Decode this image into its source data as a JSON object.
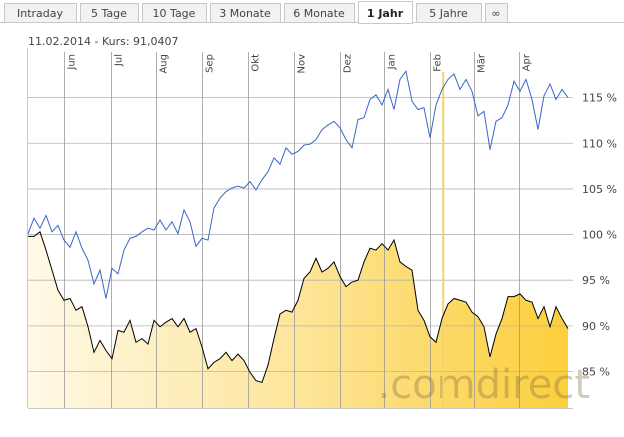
{
  "tabs": [
    "Intraday",
    "5 Tage",
    "10 Tage",
    "3 Monate",
    "6 Monate",
    "1 Jahr",
    "5 Jahre",
    "∞"
  ],
  "active_tab": 5,
  "chart_data": {
    "type": "line",
    "title": "11.02.2014  -  Kurs: 91,0407",
    "watermark": ".comdirect",
    "x": [
      0,
      1,
      2,
      3,
      4,
      5,
      6,
      7,
      8,
      9,
      10,
      11,
      12,
      13,
      14,
      15,
      16,
      17,
      18,
      19,
      20,
      21,
      22,
      23,
      24,
      25,
      26,
      27,
      28,
      29,
      30,
      31,
      32,
      33,
      34,
      35,
      36,
      37,
      38,
      39,
      40,
      41,
      42,
      43,
      44,
      45,
      46,
      47,
      48,
      49,
      50,
      51,
      52,
      53,
      54,
      55,
      56,
      57,
      58,
      59,
      60,
      61,
      62,
      63,
      64,
      65,
      66,
      67,
      68,
      69,
      70,
      71,
      72,
      73,
      74,
      75,
      76,
      77,
      78,
      79,
      80,
      81,
      82,
      83,
      84,
      85,
      86,
      87,
      88,
      89,
      90
    ],
    "xlim": [
      0,
      90
    ],
    "xticks": [
      {
        "value": 6,
        "label": "Jun"
      },
      {
        "value": 13.83,
        "label": "Jul"
      },
      {
        "value": 21.33,
        "label": "Aug"
      },
      {
        "value": 29,
        "label": "Sep"
      },
      {
        "value": 36.67,
        "label": "Okt"
      },
      {
        "value": 44.33,
        "label": "Nov"
      },
      {
        "value": 52,
        "label": "Dez"
      },
      {
        "value": 59.33,
        "label": "Jan"
      },
      {
        "value": 67,
        "label": "Feb"
      },
      {
        "value": 74.33,
        "label": "Mär"
      },
      {
        "value": 81.83,
        "label": "Apr"
      }
    ],
    "ylim": [
      81,
      120
    ],
    "yticks": [
      {
        "value": 85,
        "label": "85 %"
      },
      {
        "value": 90,
        "label": "90 %"
      },
      {
        "value": 95,
        "label": "95 %"
      },
      {
        "value": 100,
        "label": "100 %"
      },
      {
        "value": 105,
        "label": "105 %"
      },
      {
        "value": 110,
        "label": "110 %"
      },
      {
        "value": 115,
        "label": "115 %"
      }
    ],
    "grid": true,
    "crosshair_x": 69.2,
    "series": [
      {
        "color": "#3a66c8",
        "fill": false,
        "values": [
          100.1,
          101.8,
          100.7,
          102.1,
          100.3,
          101.0,
          99.4,
          98.6,
          100.3,
          98.5,
          97.2,
          94.6,
          96.1,
          93.0,
          96.3,
          95.7,
          98.3,
          99.6,
          99.8,
          100.3,
          100.7,
          100.5,
          101.6,
          100.5,
          101.4,
          100.1,
          102.7,
          101.4,
          98.7,
          99.6,
          99.4,
          102.9,
          104.0,
          104.7,
          105.1,
          105.3,
          105.1,
          105.8,
          104.9,
          106.0,
          106.9,
          108.4,
          107.7,
          109.5,
          108.8,
          109.1,
          109.8,
          109.9,
          110.4,
          111.5,
          112.0,
          112.4,
          111.7,
          110.4,
          109.5,
          112.6,
          112.8,
          114.8,
          115.3,
          114.2,
          115.9,
          113.7,
          117.0,
          117.9,
          114.6,
          113.7,
          113.9,
          110.6,
          114.2,
          115.9,
          117.0,
          117.6,
          115.9,
          117.0,
          115.7,
          113.0,
          113.5,
          109.3,
          112.4,
          112.8,
          114.2,
          116.8,
          115.7,
          117.0,
          114.8,
          111.5,
          115.2,
          116.5,
          114.8,
          115.9,
          115.0
        ]
      },
      {
        "color": "#000000",
        "fill": true,
        "values": [
          99.8,
          99.8,
          100.3,
          98.3,
          96.1,
          93.9,
          92.8,
          93.0,
          91.7,
          92.1,
          89.9,
          87.1,
          88.4,
          87.3,
          86.4,
          89.5,
          89.3,
          90.6,
          88.2,
          88.6,
          88.0,
          90.6,
          89.9,
          90.4,
          90.8,
          89.9,
          90.8,
          89.3,
          89.7,
          87.7,
          85.3,
          86.0,
          86.4,
          87.1,
          86.2,
          86.9,
          86.2,
          84.9,
          84.0,
          83.8,
          85.7,
          88.6,
          91.3,
          91.7,
          91.5,
          92.8,
          95.2,
          95.9,
          97.4,
          95.9,
          96.3,
          97.0,
          95.4,
          94.3,
          94.8,
          95.0,
          97.0,
          98.5,
          98.3,
          99.0,
          98.3,
          99.4,
          97.0,
          96.5,
          96.1,
          91.7,
          90.6,
          88.8,
          88.2,
          90.8,
          92.4,
          93.0,
          92.8,
          92.6,
          91.5,
          91.0,
          89.9,
          86.6,
          89.1,
          90.8,
          93.2,
          93.2,
          93.5,
          92.8,
          92.6,
          90.8,
          92.1,
          89.9,
          92.1,
          90.8,
          89.7
        ]
      }
    ]
  }
}
